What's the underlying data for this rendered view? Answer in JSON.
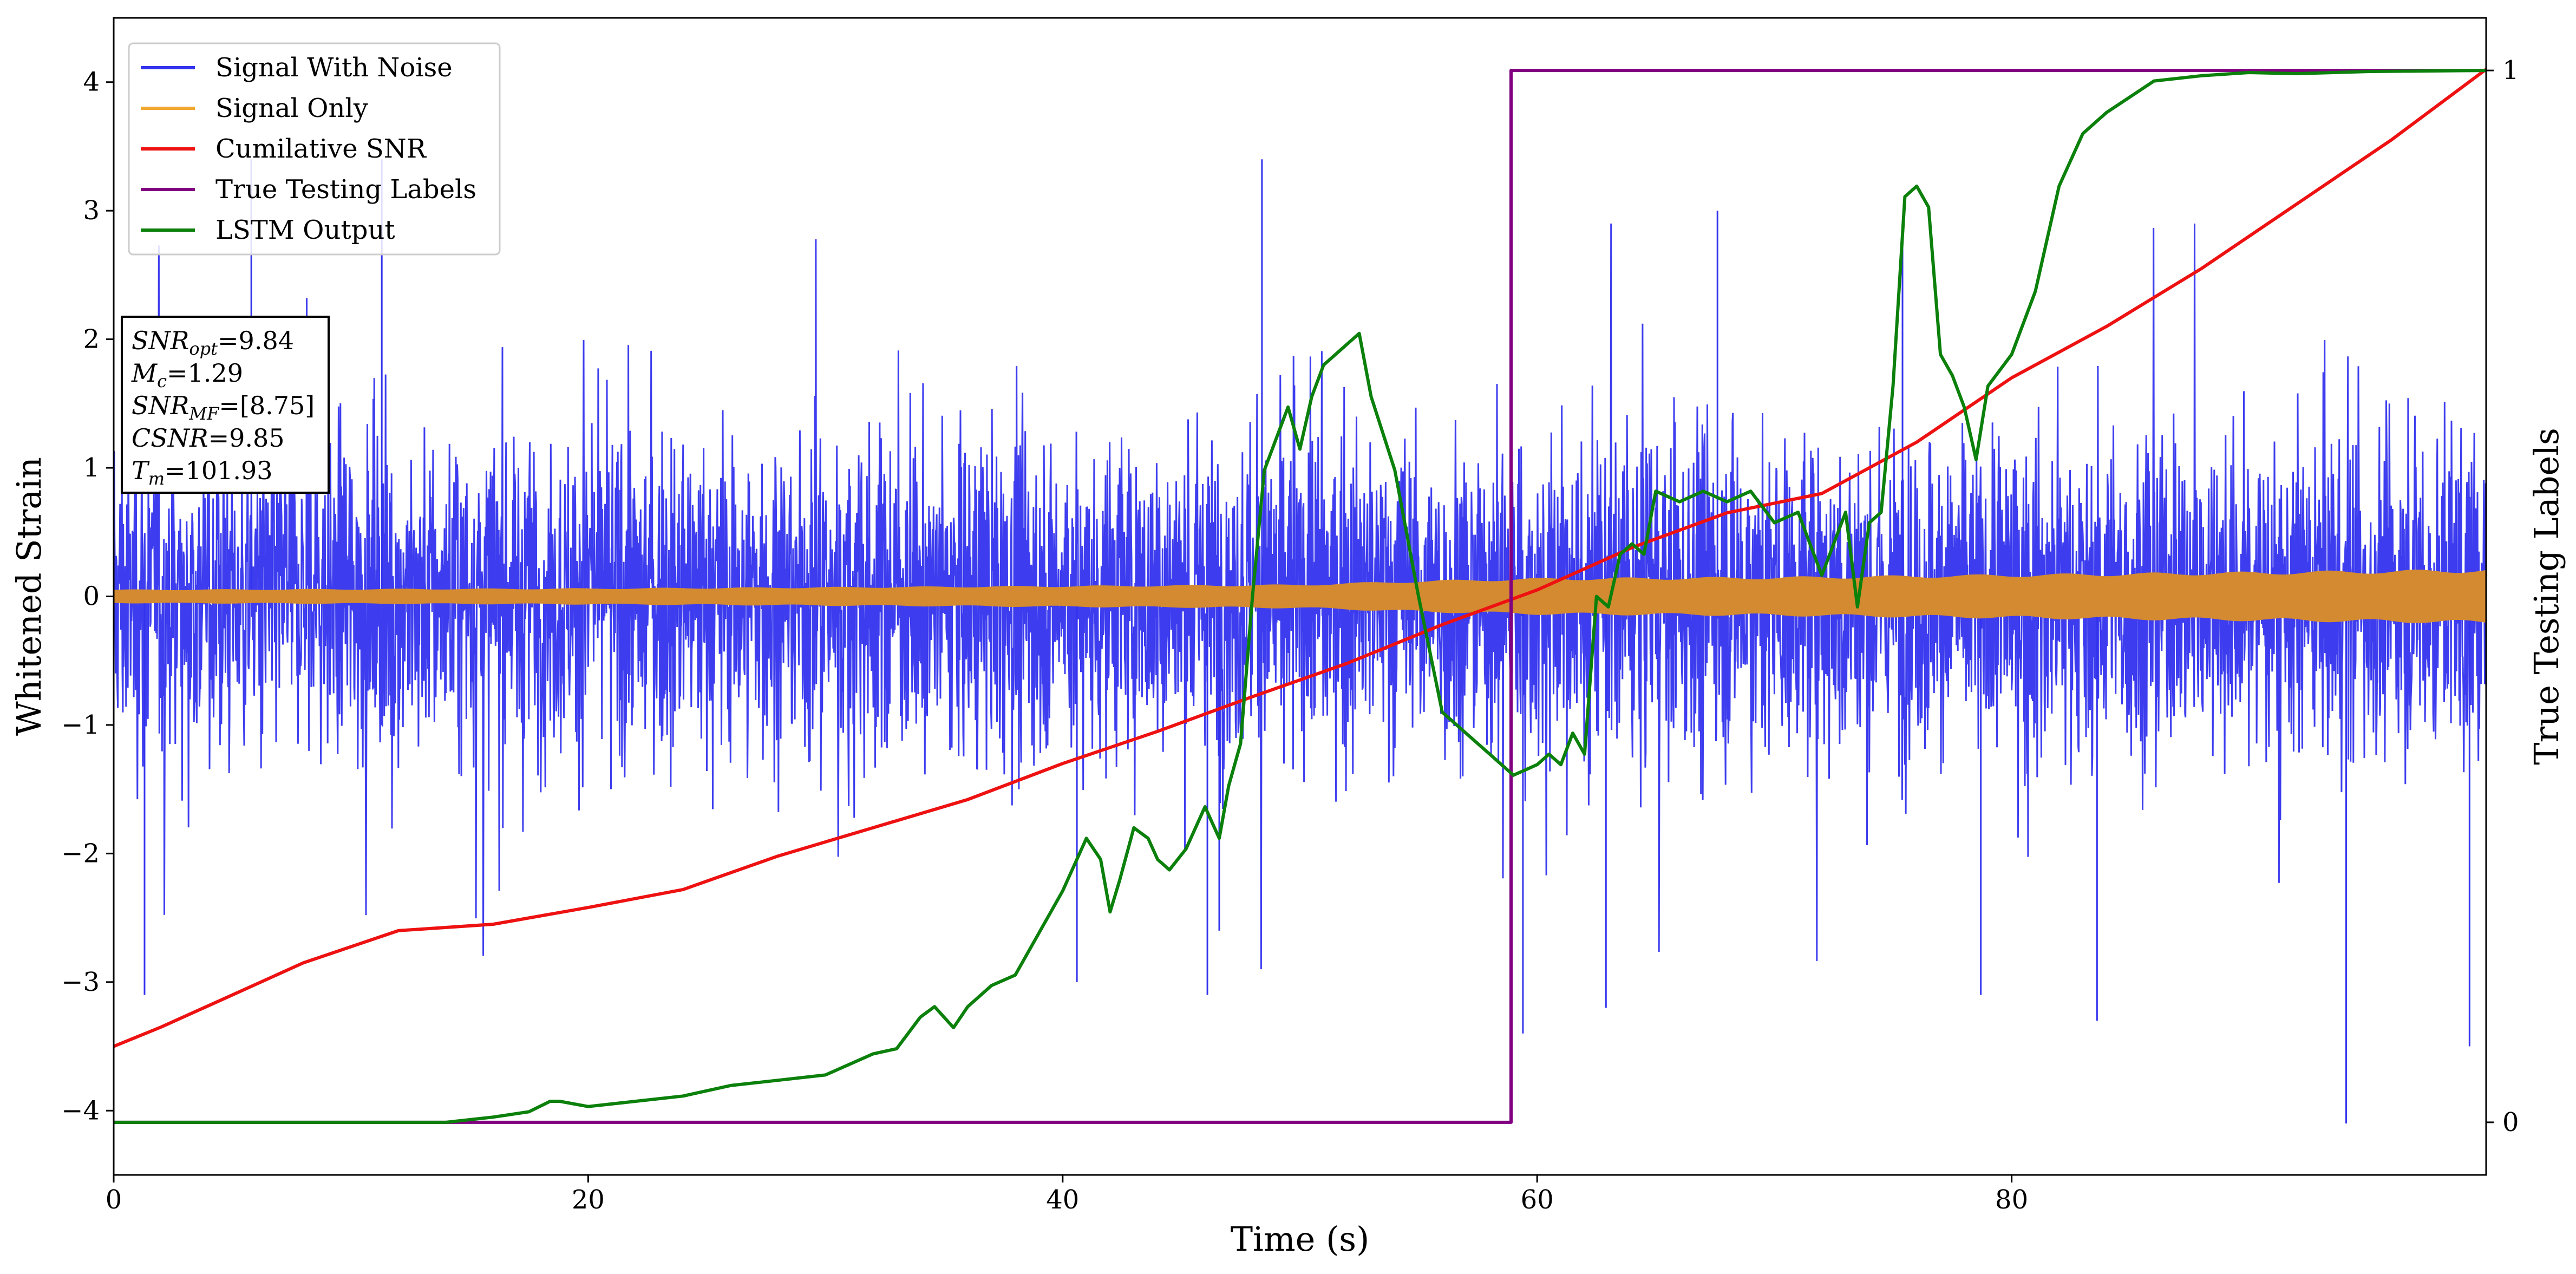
{
  "chart_data": {
    "type": "line",
    "xlabel": "Time (s)",
    "ylabel": "Whitened Strain",
    "y2label": "True Testing Labels",
    "xlim": [
      0,
      100
    ],
    "ylim": [
      -4.5,
      4.5
    ],
    "y2lim": [
      -0.05,
      1.05
    ],
    "xticks": [
      0,
      20,
      40,
      60,
      80
    ],
    "yticks": [
      -4,
      -3,
      -2,
      -1,
      0,
      1,
      2,
      3,
      4
    ],
    "y2ticks": [
      0,
      1
    ],
    "legend_position": "upper-left",
    "grid": false,
    "series": [
      {
        "name": "Signal With Noise",
        "axis": "left",
        "color": "#3333ee",
        "kind": "noise",
        "description_stats": {
          "typical_upper": 1.6,
          "typical_lower": -1.5,
          "peak_max": 3.4,
          "peak_min": -4.1
        },
        "spikes": [
          {
            "x": 1.3,
            "y": -3.1
          },
          {
            "x": 5.8,
            "y": 3.4
          },
          {
            "x": 11.3,
            "y": 3.4
          },
          {
            "x": 40.6,
            "y": -3.0
          },
          {
            "x": 46.1,
            "y": -3.1
          },
          {
            "x": 46.6,
            "y": -2.6
          },
          {
            "x": 48.4,
            "y": 3.4
          },
          {
            "x": 59.4,
            "y": -3.4
          },
          {
            "x": 62.9,
            "y": -3.2
          },
          {
            "x": 67.6,
            "y": 3.0
          },
          {
            "x": 75.4,
            "y": 2.9
          },
          {
            "x": 78.7,
            "y": -3.1
          },
          {
            "x": 83.6,
            "y": -3.3
          },
          {
            "x": 94.1,
            "y": -4.1
          },
          {
            "x": 99.3,
            "y": -3.5
          }
        ]
      },
      {
        "name": "Signal Only",
        "axis": "left",
        "color": "#f0a830",
        "kind": "envelope",
        "x": [
          0,
          20,
          40,
          50,
          55,
          60,
          70,
          80,
          90,
          100
        ],
        "amplitude": [
          0.05,
          0.06,
          0.08,
          0.09,
          0.12,
          0.14,
          0.15,
          0.17,
          0.19,
          0.21
        ]
      },
      {
        "name": "Cumilative SNR",
        "axis": "left",
        "color": "#ee1111",
        "x": [
          0,
          2,
          5,
          8,
          12,
          16,
          20,
          24,
          28,
          32,
          36,
          40,
          44,
          48,
          52,
          56,
          60,
          64,
          68,
          72,
          76,
          80,
          84,
          88,
          92,
          96,
          100
        ],
        "y": [
          -3.5,
          -3.35,
          -3.1,
          -2.85,
          -2.6,
          -2.55,
          -2.42,
          -2.28,
          -2.02,
          -1.8,
          -1.58,
          -1.3,
          -1.05,
          -0.78,
          -0.52,
          -0.22,
          0.05,
          0.38,
          0.65,
          0.8,
          1.2,
          1.7,
          2.1,
          2.55,
          3.05,
          3.55,
          4.1
        ]
      },
      {
        "name": "True Testing Labels",
        "axis": "right",
        "color": "#800080",
        "x": [
          0,
          58.9,
          58.9,
          60.0,
          100
        ],
        "y": [
          0,
          0,
          1,
          1,
          1
        ]
      },
      {
        "name": "LSTM Output",
        "axis": "right",
        "color": "#0b800b",
        "x": [
          0,
          14,
          16,
          17.5,
          18.4,
          18.8,
          20,
          22,
          24,
          26,
          28,
          30,
          31,
          32,
          33,
          34,
          34.6,
          35.4,
          36,
          37,
          38,
          39,
          40,
          41,
          41.6,
          42,
          42.4,
          43,
          43.6,
          44,
          44.5,
          45.2,
          46,
          46.6,
          47,
          47.5,
          48,
          48.5,
          49.5,
          50,
          50.5,
          51,
          52,
          52.5,
          53,
          54,
          55,
          56,
          57,
          58,
          59,
          60,
          60.5,
          61,
          61.5,
          62,
          62.5,
          63,
          63.5,
          64,
          64.5,
          65,
          66,
          67,
          68,
          69,
          70,
          71,
          72,
          73,
          73.5,
          74,
          74.5,
          75,
          75.5,
          76,
          76.5,
          77,
          77.5,
          78,
          78.5,
          79,
          80,
          81,
          82,
          83,
          84,
          85,
          86,
          88,
          90,
          92,
          95,
          100
        ],
        "y": [
          0,
          0,
          0.005,
          0.01,
          0.02,
          0.02,
          0.015,
          0.02,
          0.025,
          0.035,
          0.04,
          0.045,
          0.055,
          0.065,
          0.07,
          0.1,
          0.11,
          0.09,
          0.11,
          0.13,
          0.14,
          0.18,
          0.22,
          0.27,
          0.25,
          0.2,
          0.23,
          0.28,
          0.27,
          0.25,
          0.24,
          0.26,
          0.3,
          0.27,
          0.32,
          0.36,
          0.5,
          0.62,
          0.68,
          0.64,
          0.69,
          0.72,
          0.74,
          0.75,
          0.69,
          0.62,
          0.5,
          0.39,
          0.37,
          0.35,
          0.33,
          0.34,
          0.35,
          0.34,
          0.37,
          0.35,
          0.5,
          0.49,
          0.54,
          0.55,
          0.54,
          0.6,
          0.59,
          0.6,
          0.59,
          0.6,
          0.57,
          0.58,
          0.52,
          0.58,
          0.49,
          0.57,
          0.58,
          0.7,
          0.88,
          0.89,
          0.87,
          0.73,
          0.71,
          0.68,
          0.63,
          0.7,
          0.73,
          0.79,
          0.89,
          0.94,
          0.96,
          0.975,
          0.99,
          0.995,
          0.998,
          0.997,
          0.999,
          1.0
        ]
      }
    ]
  },
  "info_box": {
    "lines": [
      "SNR_opt=9.84",
      "M_c=1.29",
      "SNR_MF=[8.75]",
      "CSNR=9.85",
      "T_m=101.93"
    ]
  }
}
